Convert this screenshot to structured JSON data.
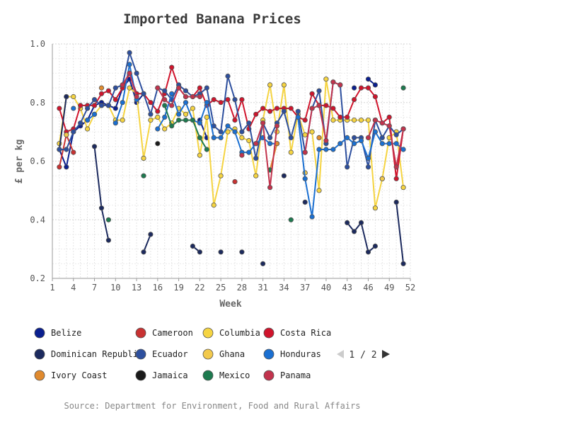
{
  "chart_data": {
    "type": "line",
    "title": "Imported Banana Prices",
    "xlabel": "Week",
    "ylabel": "£ per kg",
    "xlim": [
      1,
      52
    ],
    "ylim": [
      0.2,
      1.0
    ],
    "x_ticks": [
      1,
      4,
      7,
      10,
      13,
      16,
      19,
      22,
      25,
      28,
      31,
      34,
      37,
      40,
      43,
      46,
      49,
      52
    ],
    "y_ticks": [
      0.2,
      0.4,
      0.6,
      0.8,
      1.0
    ],
    "grid": true,
    "legend_position": "bottom",
    "source": "Source: Department for Environment, Food and Rural Affairs",
    "pagination": {
      "label": "1 / 2"
    },
    "series": [
      {
        "name": "Belize",
        "color": "#0a1f8f",
        "points": [
          [
            2,
            0.64
          ],
          [
            3,
            0.58
          ],
          [
            4,
            0.7
          ],
          [
            5,
            0.72
          ],
          [
            6,
            0.74
          ],
          [
            7,
            0.79
          ],
          [
            8,
            0.8
          ],
          [
            9,
            0.79
          ],
          [
            10,
            0.78
          ],
          [
            11,
            0.85
          ],
          [
            12,
            0.88
          ],
          [
            13,
            0.8
          ],
          [
            14,
            0.83
          ],
          [
            22,
            0.74
          ],
          [
            23,
            0.68
          ],
          [
            44,
            0.85
          ],
          [
            46,
            0.88
          ],
          [
            47,
            0.86
          ]
        ]
      },
      {
        "name": "Cameroon",
        "color": "#c83232",
        "points": [
          [
            2,
            0.58
          ],
          [
            3,
            0.69
          ],
          [
            4,
            0.63
          ],
          [
            27,
            0.53
          ],
          [
            37,
            0.56
          ]
        ]
      },
      {
        "name": "Columbia",
        "color": "#f5d442",
        "points": [
          [
            2,
            0.66
          ],
          [
            3,
            0.82
          ],
          [
            4,
            0.82
          ],
          [
            5,
            0.78
          ],
          [
            6,
            0.71
          ],
          [
            7,
            0.76
          ],
          [
            8,
            0.79
          ],
          [
            9,
            0.79
          ],
          [
            10,
            0.74
          ],
          [
            11,
            0.74
          ],
          [
            12,
            0.85
          ],
          [
            13,
            0.83
          ],
          [
            14,
            0.61
          ],
          [
            15,
            0.74
          ],
          [
            16,
            0.75
          ],
          [
            17,
            0.71
          ],
          [
            18,
            0.73
          ],
          [
            19,
            0.78
          ],
          [
            20,
            0.76
          ],
          [
            21,
            0.78
          ],
          [
            22,
            0.62
          ],
          [
            23,
            0.75
          ],
          [
            24,
            0.45
          ],
          [
            25,
            0.55
          ],
          [
            26,
            0.7
          ],
          [
            27,
            0.71
          ],
          [
            28,
            0.68
          ],
          [
            29,
            0.67
          ],
          [
            30,
            0.55
          ],
          [
            31,
            0.74
          ],
          [
            32,
            0.86
          ],
          [
            33,
            0.7
          ],
          [
            34,
            0.86
          ],
          [
            35,
            0.63
          ],
          [
            36,
            0.76
          ],
          [
            37,
            0.69
          ],
          [
            38,
            0.7
          ],
          [
            39,
            0.5
          ],
          [
            40,
            0.88
          ],
          [
            41,
            0.74
          ],
          [
            42,
            0.74
          ],
          [
            43,
            0.74
          ],
          [
            44,
            0.74
          ],
          [
            45,
            0.74
          ],
          [
            46,
            0.74
          ],
          [
            47,
            0.44
          ],
          [
            48,
            0.54
          ],
          [
            49,
            0.68
          ],
          [
            50,
            0.7
          ],
          [
            51,
            0.51
          ]
        ]
      },
      {
        "name": "Costa Rica",
        "color": "#d0142c",
        "points": [
          [
            2,
            0.78
          ],
          [
            3,
            0.7
          ],
          [
            4,
            0.71
          ],
          [
            5,
            0.79
          ],
          [
            6,
            0.79
          ],
          [
            7,
            0.79
          ],
          [
            8,
            0.83
          ],
          [
            9,
            0.84
          ],
          [
            10,
            0.81
          ],
          [
            11,
            0.85
          ],
          [
            12,
            0.9
          ],
          [
            13,
            0.83
          ],
          [
            14,
            0.83
          ],
          [
            15,
            0.8
          ],
          [
            16,
            0.77
          ],
          [
            17,
            0.83
          ],
          [
            18,
            0.92
          ],
          [
            19,
            0.85
          ],
          [
            20,
            0.82
          ],
          [
            21,
            0.82
          ],
          [
            22,
            0.85
          ],
          [
            23,
            0.79
          ],
          [
            24,
            0.81
          ],
          [
            25,
            0.8
          ],
          [
            26,
            0.81
          ],
          [
            27,
            0.74
          ],
          [
            28,
            0.81
          ],
          [
            29,
            0.71
          ],
          [
            30,
            0.76
          ],
          [
            31,
            0.78
          ],
          [
            32,
            0.77
          ],
          [
            33,
            0.78
          ],
          [
            34,
            0.78
          ],
          [
            35,
            0.78
          ],
          [
            36,
            0.75
          ],
          [
            37,
            0.74
          ],
          [
            38,
            0.83
          ],
          [
            39,
            0.79
          ],
          [
            40,
            0.79
          ],
          [
            41,
            0.78
          ],
          [
            42,
            0.75
          ],
          [
            43,
            0.75
          ],
          [
            44,
            0.81
          ],
          [
            45,
            0.85
          ],
          [
            46,
            0.85
          ],
          [
            47,
            0.82
          ],
          [
            48,
            0.73
          ],
          [
            49,
            0.75
          ],
          [
            50,
            0.54
          ],
          [
            51,
            0.71
          ]
        ]
      },
      {
        "name": "Dominican Republic",
        "color": "#1c2a5e",
        "points": [
          [
            2,
            0.64
          ],
          [
            3,
            0.82
          ],
          [
            7,
            0.65
          ],
          [
            8,
            0.44
          ],
          [
            9,
            0.33
          ],
          [
            14,
            0.29
          ],
          [
            15,
            0.35
          ],
          [
            21,
            0.31
          ],
          [
            22,
            0.29
          ],
          [
            25,
            0.29
          ],
          [
            28,
            0.29
          ],
          [
            31,
            0.25
          ],
          [
            34,
            0.55
          ],
          [
            37,
            0.46
          ],
          [
            43,
            0.39
          ],
          [
            44,
            0.36
          ],
          [
            45,
            0.39
          ],
          [
            46,
            0.29
          ],
          [
            47,
            0.31
          ],
          [
            50,
            0.46
          ],
          [
            51,
            0.25
          ]
        ]
      },
      {
        "name": "Ecuador",
        "color": "#2d4f9e",
        "points": [
          [
            2,
            0.64
          ],
          [
            3,
            0.64
          ],
          [
            4,
            0.7
          ],
          [
            5,
            0.73
          ],
          [
            6,
            0.78
          ],
          [
            7,
            0.81
          ],
          [
            8,
            0.79
          ],
          [
            9,
            0.79
          ],
          [
            10,
            0.85
          ],
          [
            11,
            0.86
          ],
          [
            12,
            0.97
          ],
          [
            13,
            0.9
          ],
          [
            14,
            0.83
          ],
          [
            15,
            0.76
          ],
          [
            16,
            0.85
          ],
          [
            17,
            0.84
          ],
          [
            18,
            0.81
          ],
          [
            19,
            0.86
          ],
          [
            20,
            0.84
          ],
          [
            21,
            0.82
          ],
          [
            22,
            0.83
          ],
          [
            23,
            0.85
          ],
          [
            24,
            0.72
          ],
          [
            25,
            0.7
          ],
          [
            26,
            0.89
          ],
          [
            27,
            0.81
          ],
          [
            28,
            0.7
          ],
          [
            29,
            0.73
          ],
          [
            30,
            0.61
          ],
          [
            31,
            0.73
          ],
          [
            32,
            0.68
          ],
          [
            33,
            0.73
          ],
          [
            34,
            0.77
          ],
          [
            35,
            0.68
          ],
          [
            36,
            0.77
          ],
          [
            37,
            0.63
          ],
          [
            38,
            0.78
          ],
          [
            39,
            0.84
          ],
          [
            40,
            0.66
          ],
          [
            41,
            0.87
          ],
          [
            42,
            0.86
          ],
          [
            43,
            0.58
          ],
          [
            44,
            0.68
          ],
          [
            45,
            0.68
          ],
          [
            46,
            0.58
          ],
          [
            47,
            0.74
          ],
          [
            48,
            0.68
          ],
          [
            49,
            0.72
          ],
          [
            50,
            0.69
          ],
          [
            51,
            0.71
          ]
        ]
      },
      {
        "name": "Ghana",
        "color": "#f2c94c",
        "points": [
          [
            3,
            0.69
          ],
          [
            37,
            0.56
          ],
          [
            48,
            0.54
          ]
        ]
      },
      {
        "name": "Honduras",
        "color": "#1a6fd1",
        "points": [
          [
            4,
            0.78
          ],
          [
            6,
            0.74
          ],
          [
            7,
            0.76
          ],
          [
            10,
            0.73
          ],
          [
            11,
            0.8
          ],
          [
            12,
            0.93
          ],
          [
            13,
            0.81
          ],
          [
            16,
            0.71
          ],
          [
            17,
            0.75
          ],
          [
            18,
            0.83
          ],
          [
            19,
            0.76
          ],
          [
            20,
            0.8
          ],
          [
            21,
            0.74
          ],
          [
            22,
            0.73
          ],
          [
            23,
            0.8
          ],
          [
            24,
            0.68
          ],
          [
            25,
            0.68
          ],
          [
            26,
            0.72
          ],
          [
            27,
            0.7
          ],
          [
            28,
            0.63
          ],
          [
            29,
            0.63
          ],
          [
            30,
            0.66
          ],
          [
            31,
            0.68
          ],
          [
            32,
            0.66
          ],
          [
            33,
            0.66
          ],
          [
            36,
            0.75
          ],
          [
            37,
            0.54
          ],
          [
            38,
            0.41
          ],
          [
            39,
            0.64
          ],
          [
            40,
            0.64
          ],
          [
            41,
            0.64
          ],
          [
            42,
            0.66
          ],
          [
            43,
            0.68
          ],
          [
            44,
            0.66
          ],
          [
            45,
            0.67
          ],
          [
            46,
            0.61
          ],
          [
            47,
            0.7
          ],
          [
            48,
            0.66
          ],
          [
            49,
            0.66
          ],
          [
            50,
            0.66
          ],
          [
            51,
            0.64
          ]
        ]
      },
      {
        "name": "Ivory Coast",
        "color": "#e08a2e",
        "points": [
          [
            8,
            0.85
          ],
          [
            32,
            0.57
          ],
          [
            33,
            0.66
          ],
          [
            39,
            0.68
          ]
        ]
      },
      {
        "name": "Jamaica",
        "color": "#1a1a1a",
        "points": [
          [
            16,
            0.66
          ]
        ]
      },
      {
        "name": "Mexico",
        "color": "#1d7a4f",
        "points": [
          [
            9,
            0.4
          ],
          [
            14,
            0.55
          ],
          [
            17,
            0.79
          ],
          [
            18,
            0.72
          ],
          [
            19,
            0.74
          ],
          [
            20,
            0.74
          ],
          [
            21,
            0.74
          ],
          [
            22,
            0.68
          ],
          [
            23,
            0.64
          ],
          [
            32,
            0.57
          ],
          [
            35,
            0.4
          ],
          [
            47,
            0.74
          ],
          [
            51,
            0.85
          ]
        ]
      },
      {
        "name": "Panama",
        "color": "#c2334d",
        "points": [
          [
            11,
            0.86
          ],
          [
            12,
            0.9
          ],
          [
            13,
            0.82
          ],
          [
            16,
            0.85
          ],
          [
            17,
            0.81
          ],
          [
            18,
            0.79
          ],
          [
            19,
            0.85
          ],
          [
            20,
            0.82
          ],
          [
            21,
            0.82
          ],
          [
            22,
            0.82
          ],
          [
            28,
            0.62
          ],
          [
            30,
            0.66
          ],
          [
            31,
            0.73
          ],
          [
            32,
            0.51
          ],
          [
            33,
            0.72
          ],
          [
            37,
            0.63
          ],
          [
            38,
            0.78
          ],
          [
            39,
            0.79
          ],
          [
            40,
            0.67
          ],
          [
            41,
            0.87
          ],
          [
            42,
            0.86
          ],
          [
            46,
            0.68
          ],
          [
            47,
            0.74
          ],
          [
            48,
            0.73
          ],
          [
            49,
            0.72
          ],
          [
            50,
            0.58
          ],
          [
            51,
            0.71
          ]
        ]
      }
    ]
  }
}
